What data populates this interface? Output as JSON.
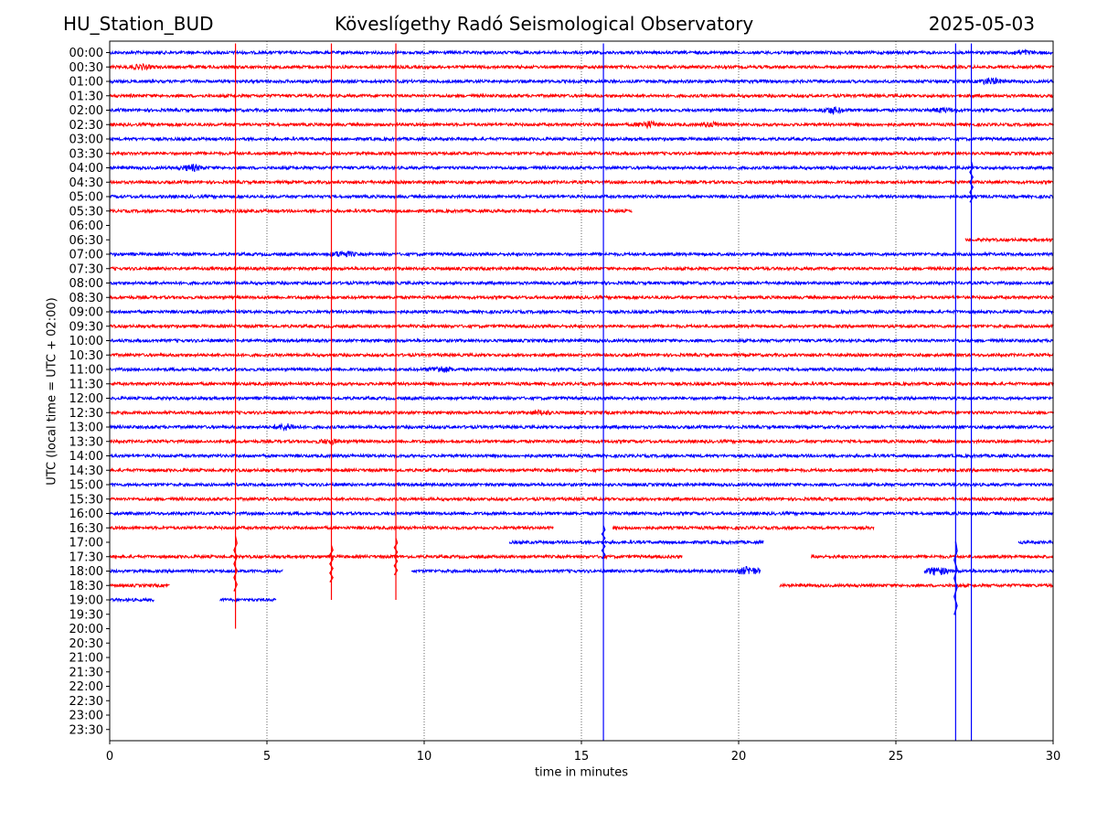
{
  "header": {
    "station": "HU_Station_BUD",
    "observatory": "Köveslígethy Radó Seismological Observatory",
    "date": "2025-05-03"
  },
  "chart_data": {
    "type": "line",
    "title": "Köveslígethy Radó Seismological Observatory",
    "xlabel": "time in minutes",
    "ylabel": "UTC (local time = UTC + 02:00)",
    "xlim": [
      0,
      30
    ],
    "x_ticks": [
      "0",
      "5",
      "10",
      "15",
      "20",
      "25",
      "30"
    ],
    "grid": "vertical dotted lines at 5, 10, 15, 20, 25",
    "row_labels": [
      "00:00",
      "00:30",
      "01:00",
      "01:30",
      "02:00",
      "02:30",
      "03:00",
      "03:30",
      "04:00",
      "04:30",
      "05:00",
      "05:30",
      "06:00",
      "06:30",
      "07:00",
      "07:30",
      "08:00",
      "08:30",
      "09:00",
      "09:30",
      "10:00",
      "10:30",
      "11:00",
      "11:30",
      "12:00",
      "12:30",
      "13:00",
      "13:30",
      "14:00",
      "14:30",
      "15:00",
      "15:30",
      "16:00",
      "16:30",
      "17:00",
      "17:30",
      "18:00",
      "18:30",
      "19:00",
      "19:30",
      "20:00",
      "20:30",
      "21:00",
      "21:30",
      "22:00",
      "22:30",
      "23:00",
      "23:30"
    ],
    "colors": [
      "#0000ff",
      "#ff0000"
    ],
    "trace_segments_minutes": [
      [
        [
          0,
          30
        ]
      ],
      [
        [
          0,
          30
        ]
      ],
      [
        [
          0,
          30
        ]
      ],
      [
        [
          0,
          30
        ]
      ],
      [
        [
          0,
          30
        ]
      ],
      [
        [
          0,
          30
        ]
      ],
      [
        [
          0,
          30
        ]
      ],
      [
        [
          0,
          30
        ]
      ],
      [
        [
          0,
          30
        ]
      ],
      [
        [
          0,
          30
        ]
      ],
      [
        [
          0,
          30
        ]
      ],
      [
        [
          0,
          16.6
        ]
      ],
      [],
      [
        [
          27.2,
          30
        ]
      ],
      [
        [
          0,
          30
        ]
      ],
      [
        [
          0,
          30
        ]
      ],
      [
        [
          0,
          30
        ]
      ],
      [
        [
          0,
          30
        ]
      ],
      [
        [
          0,
          30
        ]
      ],
      [
        [
          0,
          30
        ]
      ],
      [
        [
          0,
          30
        ]
      ],
      [
        [
          0,
          30
        ]
      ],
      [
        [
          0,
          30
        ]
      ],
      [
        [
          0,
          30
        ]
      ],
      [
        [
          0,
          30
        ]
      ],
      [
        [
          0,
          30
        ]
      ],
      [
        [
          0,
          30
        ]
      ],
      [
        [
          0,
          30
        ]
      ],
      [
        [
          0,
          30
        ]
      ],
      [
        [
          0,
          30
        ]
      ],
      [
        [
          0,
          30
        ]
      ],
      [
        [
          0,
          30
        ]
      ],
      [
        [
          0,
          30
        ]
      ],
      [
        [
          0,
          14.1
        ],
        [
          16,
          24.3
        ]
      ],
      [
        [
          12.7,
          20.8
        ],
        [
          28.9,
          30
        ]
      ],
      [
        [
          0,
          18.2
        ],
        [
          22.3,
          30
        ]
      ],
      [
        [
          0,
          5.5
        ],
        [
          9.6,
          20.7
        ],
        [
          25.9,
          30
        ]
      ],
      [
        [
          0,
          1.9
        ],
        [
          21.3,
          30
        ]
      ],
      [
        [
          0,
          1.4
        ],
        [
          3.5,
          5.3
        ]
      ],
      [],
      [],
      [],
      [],
      [],
      [],
      [],
      [],
      []
    ],
    "bursts": [
      {
        "row": 0,
        "minute": 29.0,
        "amp": 2
      },
      {
        "row": 1,
        "minute": 1.0,
        "amp": 2
      },
      {
        "row": 2,
        "minute": 28.0,
        "amp": 3
      },
      {
        "row": 4,
        "minute": 23.0,
        "amp": 3
      },
      {
        "row": 4,
        "minute": 26.5,
        "amp": 2
      },
      {
        "row": 5,
        "minute": 17.1,
        "amp": 3
      },
      {
        "row": 5,
        "minute": 19.2,
        "amp": 2
      },
      {
        "row": 8,
        "minute": 2.6,
        "amp": 3
      },
      {
        "row": 14,
        "minute": 7.4,
        "amp": 3
      },
      {
        "row": 22,
        "minute": 10.5,
        "amp": 3
      },
      {
        "row": 25,
        "minute": 13.7,
        "amp": 2
      },
      {
        "row": 26,
        "minute": 5.6,
        "amp": 3
      },
      {
        "row": 27,
        "minute": 7.0,
        "amp": 2
      },
      {
        "row": 36,
        "minute": 20.3,
        "amp": 4
      },
      {
        "row": 36,
        "minute": 26.3,
        "amp": 4
      }
    ],
    "events": [
      {
        "minute": 4.0,
        "color": "#ff0000",
        "rows": [
          0,
          40.0
        ],
        "peak_row": 35.5,
        "peak_amp": 30
      },
      {
        "minute": 7.05,
        "color": "#ff0000",
        "rows": [
          0,
          38.0
        ],
        "peak_row": 35.5,
        "peak_amp": 20
      },
      {
        "minute": 9.1,
        "color": "#ff0000",
        "rows": [
          0,
          38.0
        ],
        "peak_row": 35.0,
        "peak_amp": 20
      },
      {
        "minute": 15.7,
        "color": "#0000ff",
        "rows": [
          0,
          48.0
        ],
        "peak_row": 34.0,
        "peak_amp": 18
      },
      {
        "minute": 26.9,
        "color": "#0000ff",
        "rows": [
          0,
          48.0
        ],
        "peak_row": 36.5,
        "peak_amp": 40
      },
      {
        "minute": 27.4,
        "color": "#0000ff",
        "rows": [
          0,
          48.0
        ],
        "peak_row": 9.0,
        "peak_amp": 22
      }
    ]
  }
}
